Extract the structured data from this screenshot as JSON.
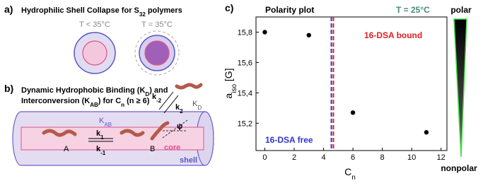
{
  "panel_a": {
    "label": "a)",
    "title": [
      "Hydrophilic Shell Collapse for S",
      "32",
      " polymers"
    ],
    "left_caption": "T < 35°C",
    "right_caption": "T = 35°C"
  },
  "panel_b": {
    "label": "b)",
    "title_line1": [
      "Dynamic Hydrophobic Binding (K",
      "D",
      ") and"
    ],
    "title_line2": [
      "Interconversion (K",
      "AB",
      ") for C",
      "n",
      " (n ≥ 6)"
    ],
    "k_minus2": [
      "k",
      "-2"
    ],
    "k_2": [
      "k",
      "2"
    ],
    "k_D": [
      "K",
      "D"
    ],
    "k_AB": [
      "K",
      "AB"
    ],
    "k_1": [
      "k",
      "1"
    ],
    "k_minus1": [
      "k",
      "-1"
    ],
    "label_A": "A",
    "label_B": "B",
    "psi": "ψ",
    "core": "core",
    "shell": "shell"
  },
  "chart_data": {
    "type": "scatter",
    "panel_label": "c)",
    "title": "Polarity plot",
    "temperature": "T = 25°C",
    "xlabel": [
      "C",
      "n"
    ],
    "ylabel": [
      "a",
      "iso",
      " [G]"
    ],
    "x": [
      0,
      3,
      6,
      11
    ],
    "values": [
      15.8,
      15.78,
      15.27,
      15.14
    ],
    "color": "#000000",
    "xlim": [
      -0.6,
      12.4
    ],
    "ylim": [
      15.02,
      15.9
    ],
    "xticks": [
      0,
      2,
      4,
      6,
      8,
      10,
      12
    ],
    "yticks": [
      {
        "value": 15.2,
        "label": "15,2"
      },
      {
        "value": 15.4,
        "label": "15,4"
      },
      {
        "value": 15.6,
        "label": "15,6"
      },
      {
        "value": 15.8,
        "label": "15,8"
      }
    ],
    "markers": [
      {
        "x": 4.53,
        "color": "#3333cc",
        "label": "16-DSA free"
      },
      {
        "x": 4.67,
        "color": "#dd2222",
        "label": "16-DSA bound"
      }
    ],
    "polar_label": "polar",
    "nonpolar_label": "nonpolar"
  }
}
